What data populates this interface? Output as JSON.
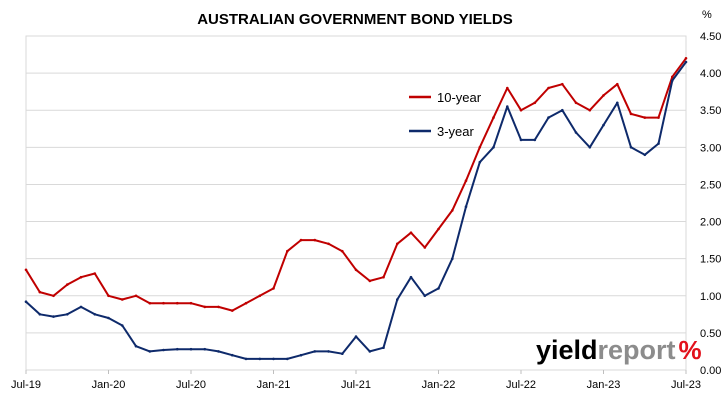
{
  "chart_data": {
    "type": "line",
    "title": "AUSTRALIAN GOVERNMENT BOND YIELDS",
    "ylabel": "%",
    "xlabel": "",
    "ylim": [
      0,
      4.5
    ],
    "y_ticks": [
      "0.00",
      "0.50",
      "1.00",
      "1.50",
      "2.00",
      "2.50",
      "3.00",
      "3.50",
      "4.00",
      "4.50"
    ],
    "x_tick_labels": [
      "Jul-19",
      "Jan-20",
      "Jul-20",
      "Jan-21",
      "Jul-21",
      "Jan-22",
      "Jul-22",
      "Jan-23",
      "Jul-23"
    ],
    "x": [
      "Jul-19",
      "Aug-19",
      "Sep-19",
      "Oct-19",
      "Nov-19",
      "Dec-19",
      "Jan-20",
      "Feb-20",
      "Mar-20",
      "Apr-20",
      "May-20",
      "Jun-20",
      "Jul-20",
      "Aug-20",
      "Sep-20",
      "Oct-20",
      "Nov-20",
      "Dec-20",
      "Jan-21",
      "Feb-21",
      "Mar-21",
      "Apr-21",
      "May-21",
      "Jun-21",
      "Jul-21",
      "Aug-21",
      "Sep-21",
      "Oct-21",
      "Nov-21",
      "Dec-21",
      "Jan-22",
      "Feb-22",
      "Mar-22",
      "Apr-22",
      "May-22",
      "Jun-22",
      "Jul-22",
      "Aug-22",
      "Sep-22",
      "Oct-22",
      "Nov-22",
      "Dec-22",
      "Jan-23",
      "Feb-23",
      "Mar-23",
      "Apr-23",
      "May-23",
      "Jun-23",
      "Jul-23"
    ],
    "series": [
      {
        "name": "10-year",
        "color": "#c00000",
        "values": [
          1.35,
          1.05,
          1.0,
          1.15,
          1.25,
          1.3,
          1.0,
          0.95,
          1.0,
          0.9,
          0.9,
          0.9,
          0.9,
          0.85,
          0.85,
          0.8,
          0.9,
          1.0,
          1.1,
          1.6,
          1.75,
          1.75,
          1.7,
          1.6,
          1.35,
          1.2,
          1.25,
          1.7,
          1.85,
          1.65,
          1.9,
          2.15,
          2.55,
          3.0,
          3.4,
          3.8,
          3.5,
          3.6,
          3.8,
          3.85,
          3.6,
          3.5,
          3.7,
          3.85,
          3.45,
          3.4,
          3.4,
          3.95,
          4.2
        ]
      },
      {
        "name": "3-year",
        "color": "#0e2a6b",
        "values": [
          0.92,
          0.75,
          0.72,
          0.75,
          0.85,
          0.75,
          0.7,
          0.6,
          0.32,
          0.25,
          0.27,
          0.28,
          0.28,
          0.28,
          0.25,
          0.2,
          0.15,
          0.15,
          0.15,
          0.15,
          0.2,
          0.25,
          0.25,
          0.22,
          0.45,
          0.25,
          0.3,
          0.95,
          1.25,
          1.0,
          1.1,
          1.5,
          2.2,
          2.8,
          3.0,
          3.55,
          3.1,
          3.1,
          3.4,
          3.5,
          3.2,
          3.0,
          3.3,
          3.6,
          3.0,
          2.9,
          3.05,
          3.9,
          4.15
        ]
      }
    ],
    "legend_position": "top-center",
    "grid": {
      "x": false,
      "y": true
    }
  },
  "watermark": {
    "text_part_1": "yield",
    "text_part_2": "report",
    "text_part_3": "%"
  }
}
